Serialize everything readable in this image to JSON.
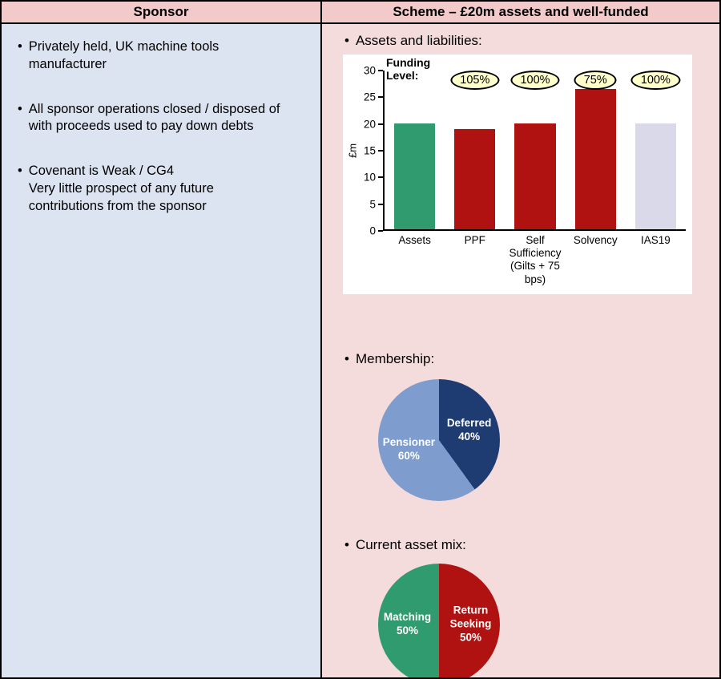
{
  "ui": {
    "bullet": "•"
  },
  "left_panel": {
    "header": "Sponsor",
    "bullets": [
      {
        "text": "Privately held, UK machine tools manufacturer"
      },
      {
        "text": "All sponsor operations closed / disposed of with proceeds used to pay down debts"
      },
      {
        "text": "Covenant is Weak / CG4\nVery little prospect of any future contributions from the sponsor"
      }
    ]
  },
  "right_panel": {
    "header": "Scheme – £20m assets and well-funded",
    "section_labels": {
      "assets": "Assets and liabilities:",
      "membership": "Membership:",
      "asset_mix": "Current asset mix:"
    }
  },
  "chart_data": [
    {
      "type": "bar",
      "title": "Assets and liabilities",
      "xlabel": "",
      "ylabel": "£m",
      "ylim": [
        0,
        30
      ],
      "yticks": [
        0,
        5,
        10,
        15,
        20,
        25,
        30
      ],
      "categories": [
        "Assets",
        "PPF",
        "Self Sufficiency (Gilts + 75 bps)",
        "Solvency",
        "IAS19"
      ],
      "values": [
        20,
        19,
        20,
        26.5,
        20
      ],
      "bar_colors": [
        "#2f9b6e",
        "#b01111",
        "#b01111",
        "#b01111",
        "#d9d9ea"
      ],
      "funding_label": "Funding\nLevel:",
      "funding_levels": [
        "",
        "105%",
        "100%",
        "75%",
        "100%"
      ],
      "badge_bg": "#ffffcc",
      "grid": false,
      "plot_bg": "#ffffff"
    },
    {
      "type": "pie",
      "title": "Membership",
      "slices": [
        {
          "label": "Deferred",
          "pct": 40,
          "color": "#1f3c72",
          "text": "Deferred\n40%"
        },
        {
          "label": "Pensioner",
          "pct": 60,
          "color": "#7e9ccd",
          "text": "Pensioner\n60%"
        }
      ]
    },
    {
      "type": "pie",
      "title": "Current asset mix",
      "slices": [
        {
          "label": "Return Seeking",
          "pct": 50,
          "color": "#b01111",
          "text": "Return\nSeeking\n50%"
        },
        {
          "label": "Matching",
          "pct": 50,
          "color": "#2f9b6e",
          "text": "Matching\n50%"
        }
      ]
    }
  ]
}
